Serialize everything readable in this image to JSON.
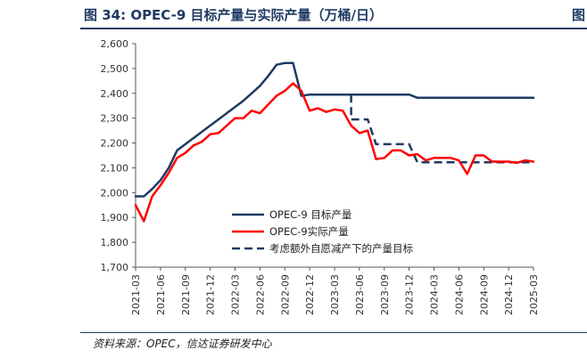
{
  "header": {
    "title": "图 34:  OPEC-9 目标产量与实际产量（万桶/日）",
    "corner_mark": "图"
  },
  "footer": {
    "source": "资料来源：OPEC，信达证券研发中心"
  },
  "chart_data": {
    "type": "line",
    "title": "图 34:  OPEC-9 目标产量与实际产量（万桶/日）",
    "xlabel": "",
    "ylabel": "",
    "ylim": [
      1700,
      2600
    ],
    "yticks": [
      1700,
      1800,
      1900,
      2000,
      2100,
      2200,
      2300,
      2400,
      2500,
      2600
    ],
    "ytick_labels": [
      "1,700",
      "1,800",
      "1,900",
      "2,000",
      "2,100",
      "2,200",
      "2,300",
      "2,400",
      "2,500",
      "2,600"
    ],
    "x_range": [
      "2021-03",
      "2025-03"
    ],
    "xtick_labels": [
      "2021-03",
      "2021-06",
      "2021-09",
      "2021-12",
      "2022-03",
      "2022-06",
      "2022-09",
      "2022-12",
      "2023-03",
      "2023-06",
      "2023-09",
      "2023-12",
      "2024-03",
      "2024-06",
      "2024-09",
      "2024-12",
      "2025-03"
    ],
    "grid": false,
    "legend_position": "bottom-left inside plot",
    "series": [
      {
        "name": "OPEC-9 目标产量",
        "color": "#1f3a63",
        "style": "solid",
        "points": [
          [
            "2021-03",
            1985
          ],
          [
            "2021-04",
            1985
          ],
          [
            "2021-05",
            2015
          ],
          [
            "2021-06",
            2050
          ],
          [
            "2021-07",
            2100
          ],
          [
            "2021-08",
            2170
          ],
          [
            "2021-09",
            2195
          ],
          [
            "2021-10",
            2220
          ],
          [
            "2021-11",
            2245
          ],
          [
            "2021-12",
            2270
          ],
          [
            "2022-01",
            2295
          ],
          [
            "2022-02",
            2320
          ],
          [
            "2022-03",
            2345
          ],
          [
            "2022-04",
            2370
          ],
          [
            "2022-05",
            2400
          ],
          [
            "2022-06",
            2430
          ],
          [
            "2022-07",
            2470
          ],
          [
            "2022-08",
            2515
          ],
          [
            "2022-09",
            2522
          ],
          [
            "2022-10",
            2522
          ],
          [
            "2022-11",
            2390
          ],
          [
            "2022-12",
            2395
          ],
          [
            "2023-01",
            2395
          ],
          [
            "2023-02",
            2395
          ],
          [
            "2023-03",
            2395
          ],
          [
            "2023-04",
            2395
          ],
          [
            "2023-05",
            2395
          ],
          [
            "2023-06",
            2395
          ],
          [
            "2023-07",
            2395
          ],
          [
            "2023-08",
            2395
          ],
          [
            "2023-09",
            2395
          ],
          [
            "2023-10",
            2395
          ],
          [
            "2023-11",
            2395
          ],
          [
            "2023-12",
            2395
          ],
          [
            "2024-01",
            2382
          ],
          [
            "2024-03",
            2382
          ],
          [
            "2024-06",
            2382
          ],
          [
            "2024-09",
            2382
          ],
          [
            "2024-12",
            2382
          ],
          [
            "2025-03",
            2382
          ]
        ]
      },
      {
        "name": "OPEC-9实际产量",
        "color": "#ff0000",
        "style": "solid",
        "points": [
          [
            "2021-03",
            1950
          ],
          [
            "2021-04",
            1885
          ],
          [
            "2021-05",
            1985
          ],
          [
            "2021-06",
            2030
          ],
          [
            "2021-07",
            2080
          ],
          [
            "2021-08",
            2140
          ],
          [
            "2021-09",
            2160
          ],
          [
            "2021-10",
            2190
          ],
          [
            "2021-11",
            2205
          ],
          [
            "2021-12",
            2235
          ],
          [
            "2022-01",
            2240
          ],
          [
            "2022-02",
            2270
          ],
          [
            "2022-03",
            2300
          ],
          [
            "2022-04",
            2300
          ],
          [
            "2022-05",
            2330
          ],
          [
            "2022-06",
            2320
          ],
          [
            "2022-07",
            2355
          ],
          [
            "2022-08",
            2390
          ],
          [
            "2022-09",
            2410
          ],
          [
            "2022-10",
            2440
          ],
          [
            "2022-11",
            2410
          ],
          [
            "2022-12",
            2330
          ],
          [
            "2023-01",
            2340
          ],
          [
            "2023-02",
            2325
          ],
          [
            "2023-03",
            2335
          ],
          [
            "2023-04",
            2330
          ],
          [
            "2023-05",
            2270
          ],
          [
            "2023-06",
            2240
          ],
          [
            "2023-07",
            2250
          ],
          [
            "2023-08",
            2135
          ],
          [
            "2023-09",
            2140
          ],
          [
            "2023-10",
            2170
          ],
          [
            "2023-11",
            2170
          ],
          [
            "2023-12",
            2150
          ],
          [
            "2024-01",
            2155
          ],
          [
            "2024-02",
            2130
          ],
          [
            "2024-03",
            2140
          ],
          [
            "2024-04",
            2140
          ],
          [
            "2024-05",
            2140
          ],
          [
            "2024-06",
            2130
          ],
          [
            "2024-07",
            2075
          ],
          [
            "2024-08",
            2150
          ],
          [
            "2024-09",
            2150
          ],
          [
            "2024-10",
            2125
          ],
          [
            "2024-11",
            2125
          ],
          [
            "2024-12",
            2125
          ],
          [
            "2025-01",
            2120
          ],
          [
            "2025-02",
            2130
          ],
          [
            "2025-03",
            2125
          ]
        ]
      },
      {
        "name": "考虑额外自愿减产下的产量目标",
        "color": "#1f3a63",
        "style": "dashed",
        "points": [
          [
            "2023-05",
            2395
          ],
          [
            "2023-05",
            2295
          ],
          [
            "2023-07",
            2295
          ],
          [
            "2023-08",
            2195
          ],
          [
            "2023-12",
            2195
          ],
          [
            "2024-01",
            2122
          ],
          [
            "2025-03",
            2122
          ]
        ]
      }
    ]
  }
}
